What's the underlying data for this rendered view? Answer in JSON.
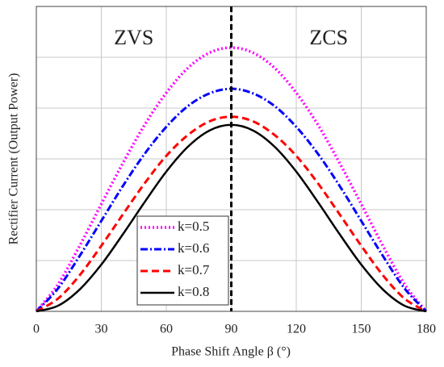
{
  "chart_data": {
    "type": "line",
    "ylabel": "Rectifier Current (Output Power)",
    "xlabel": "Phase Shift Angle β (°)",
    "annotations": [
      {
        "text": "ZVS",
        "x": 45,
        "y": 5.35
      },
      {
        "text": "ZCS",
        "x": 135,
        "y": 5.35
      }
    ],
    "vline": {
      "x": 90,
      "color": "#000000"
    },
    "x": [
      0,
      10,
      20,
      30,
      40,
      50,
      60,
      70,
      80,
      90,
      100,
      110,
      120,
      130,
      140,
      150,
      160,
      170,
      180
    ],
    "series": [
      {
        "name": "k=0.5",
        "color": "#ff00ff",
        "dash": "dot",
        "values": [
          0,
          0.53,
          1.29,
          2.11,
          2.92,
          3.67,
          4.3,
          4.79,
          5.09,
          5.19,
          5.09,
          4.79,
          4.3,
          3.67,
          2.92,
          2.11,
          1.29,
          0.53,
          0
        ]
      },
      {
        "name": "k=0.6",
        "color": "#0000ff",
        "dash": "dashdot",
        "values": [
          0,
          0.45,
          1.09,
          1.78,
          2.47,
          3.1,
          3.63,
          4.04,
          4.29,
          4.38,
          4.29,
          4.04,
          3.63,
          3.1,
          2.47,
          1.78,
          1.09,
          0.45,
          0
        ]
      },
      {
        "name": "k=0.7",
        "color": "#ff0000",
        "dash": "dash",
        "values": [
          0,
          0.25,
          0.71,
          1.29,
          1.91,
          2.52,
          3.06,
          3.47,
          3.74,
          3.83,
          3.74,
          3.47,
          3.06,
          2.52,
          1.91,
          1.29,
          0.71,
          0.25,
          0
        ]
      },
      {
        "name": "k=0.8",
        "color": "#000000",
        "dash": "solid",
        "values": [
          0,
          0.11,
          0.43,
          0.92,
          1.52,
          2.15,
          2.75,
          3.24,
          3.56,
          3.67,
          3.56,
          3.24,
          2.75,
          2.15,
          1.52,
          0.92,
          0.43,
          0.11,
          0
        ]
      }
    ],
    "xlim": [
      0,
      180
    ],
    "xticks": [
      0,
      30,
      60,
      90,
      120,
      150,
      180
    ],
    "ylim": [
      0,
      6
    ],
    "yticks": [
      0,
      1,
      2,
      3,
      4,
      5,
      6
    ],
    "grid": true,
    "legend": "lower left"
  }
}
